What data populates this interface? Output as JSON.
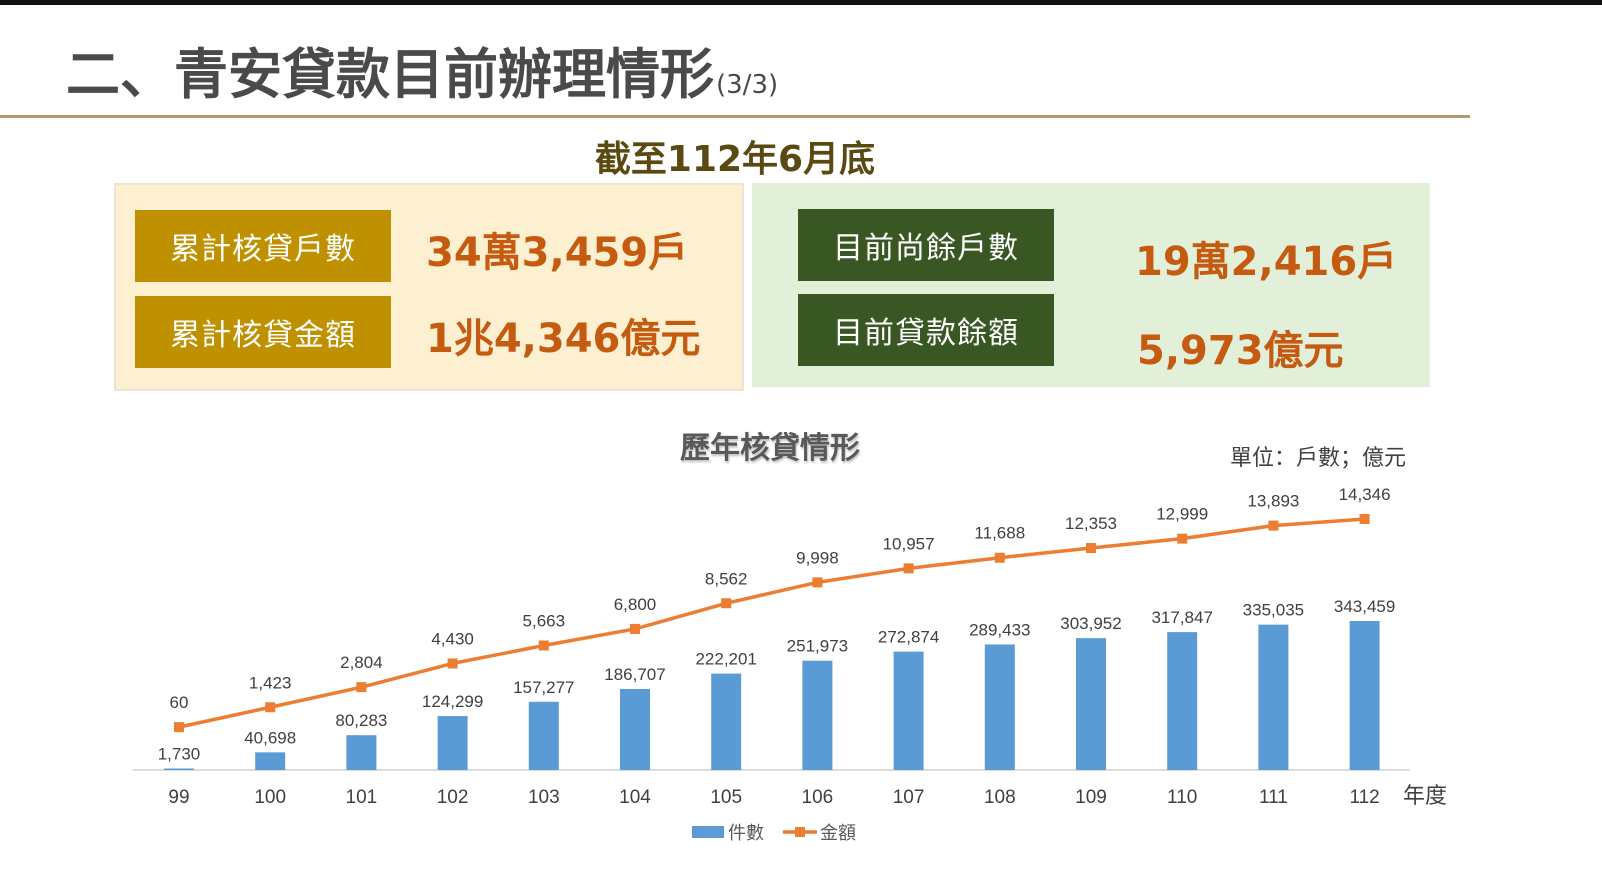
{
  "header": {
    "title": "二、青安貸款目前辦理情形",
    "title_suffix": "(3/3)",
    "as_of": "截至112年6月底"
  },
  "summary": {
    "left": [
      {
        "label": "累計核貸戶數",
        "value": "34萬3,459戶"
      },
      {
        "label": "累計核貸金額",
        "value": "1兆4,346億元"
      }
    ],
    "right": [
      {
        "label": "目前尚餘戶數",
        "value": "19萬2,416戶"
      },
      {
        "label": "目前貸款餘額",
        "value": "5,973億元"
      }
    ]
  },
  "colors": {
    "bar": "#5b9bd5",
    "line": "#ed7d31",
    "gold_tag": "#bf9000",
    "green_tag": "#385723",
    "value_text": "#c55a11"
  },
  "chart_data": {
    "type": "bar",
    "title": "歷年核貸情形",
    "unit_note": "單位：戶數；億元",
    "xlabel": "年度",
    "categories": [
      "99",
      "100",
      "101",
      "102",
      "103",
      "104",
      "105",
      "106",
      "107",
      "108",
      "109",
      "110",
      "111",
      "112"
    ],
    "series": [
      {
        "name": "件數",
        "type": "bar",
        "values": [
          1730,
          40698,
          80283,
          124299,
          157277,
          186707,
          222201,
          251973,
          272874,
          289433,
          303952,
          317847,
          335035,
          343459
        ],
        "labels": [
          "1,730",
          "40,698",
          "80,283",
          "124,299",
          "157,277",
          "186,707",
          "222,201",
          "251,973",
          "272,874",
          "289,433",
          "303,952",
          "317,847",
          "335,035",
          "343,459"
        ]
      },
      {
        "name": "金額",
        "type": "line",
        "values": [
          60,
          1423,
          2804,
          4430,
          5663,
          6800,
          8562,
          9998,
          10957,
          11688,
          12353,
          12999,
          13893,
          14346
        ],
        "labels": [
          "60",
          "1,423",
          "2,804",
          "4,430",
          "5,663",
          "6,800",
          "8,562",
          "9,998",
          "10,957",
          "11,688",
          "12,353",
          "12,999",
          "13,893",
          "14,346"
        ]
      }
    ],
    "legend_position": "bottom",
    "grid": false
  }
}
